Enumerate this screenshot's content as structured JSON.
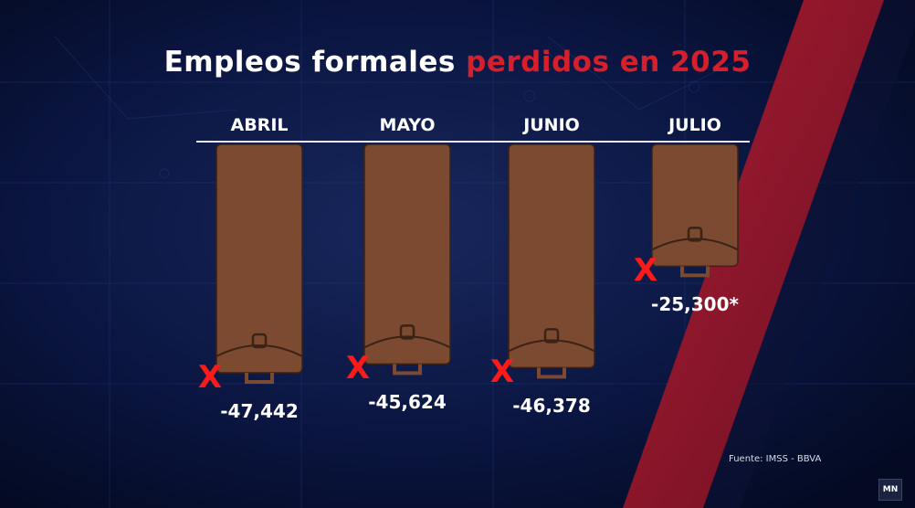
{
  "chart_data": {
    "type": "bar",
    "title_parts": [
      "Empleos formales ",
      "perdidos en 2025"
    ],
    "categories": [
      "ABRIL",
      "MAYO",
      "JUNIO",
      "JULIO"
    ],
    "values": [
      -47442,
      -45624,
      -46378,
      -25300
    ],
    "value_labels": [
      "-47,442",
      "-45,624",
      "-46,378",
      "-25,300*"
    ],
    "marker": "X",
    "source": "Fuente: IMSS - BBVA",
    "colors": {
      "bar": "#7b4a30",
      "bar_outline": "#3a2216",
      "accent": "#d51f2c",
      "marker": "#ff1a1a",
      "background": "#06102e"
    }
  },
  "brand": {
    "logo_text": "MN",
    "logo_icon": "mn-logo-icon"
  }
}
